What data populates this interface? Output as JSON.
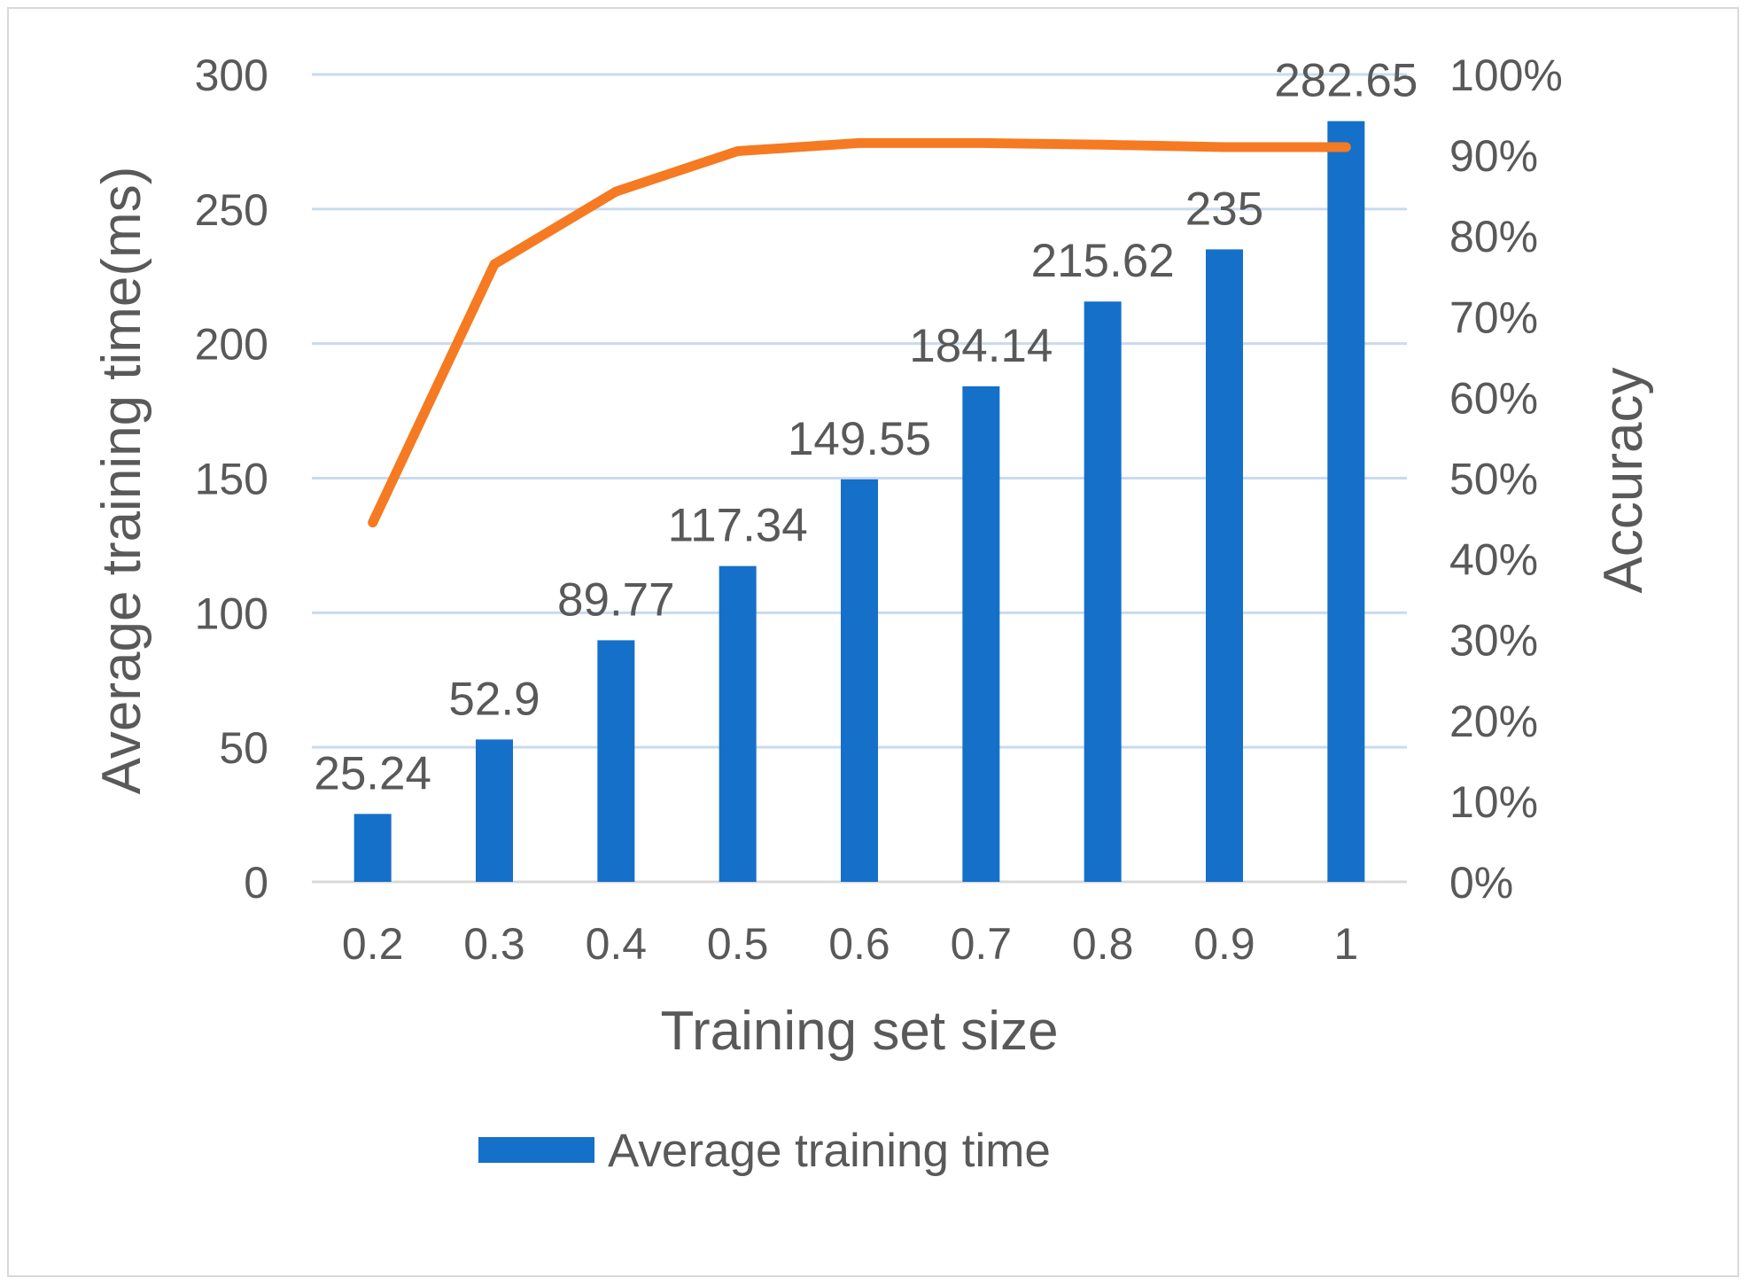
{
  "chart_data": {
    "type": "bar",
    "categories": [
      "0.2",
      "0.3",
      "0.4",
      "0.5",
      "0.6",
      "0.7",
      "0.8",
      "0.9",
      "1"
    ],
    "series": [
      {
        "name": "Average training time",
        "type": "bar",
        "axis": "left",
        "color": "#1570C9",
        "values": [
          25.24,
          52.9,
          89.77,
          117.34,
          149.55,
          184.14,
          215.62,
          235,
          282.65
        ],
        "data_labels": [
          "25.24",
          "52.9",
          "89.77",
          "117.34",
          "149.55",
          "184.14",
          "215.62",
          "235",
          "282.65"
        ]
      },
      {
        "type": "line",
        "axis": "right",
        "color": "#F57A22",
        "values": [
          0.445,
          0.765,
          0.855,
          0.905,
          0.915,
          0.915,
          0.913,
          0.91,
          0.91
        ]
      }
    ],
    "xlabel": "Training set size",
    "ylabel": "Average training time(ms)",
    "y2label": "Accuracy",
    "ylim": [
      0,
      300
    ],
    "y2lim": [
      0,
      1
    ],
    "yticks": [
      "0",
      "50",
      "100",
      "150",
      "200",
      "250",
      "300"
    ],
    "y2ticks": [
      "0%",
      "10%",
      "20%",
      "30%",
      "40%",
      "50%",
      "60%",
      "70%",
      "80%",
      "90%",
      "100%"
    ],
    "legend": {
      "position": "bottom",
      "entries": [
        "Average training time"
      ]
    },
    "grid": true,
    "gridColor": "#C9DAF0",
    "axisColor": "#D9D9D9",
    "textColor": "#595959"
  }
}
